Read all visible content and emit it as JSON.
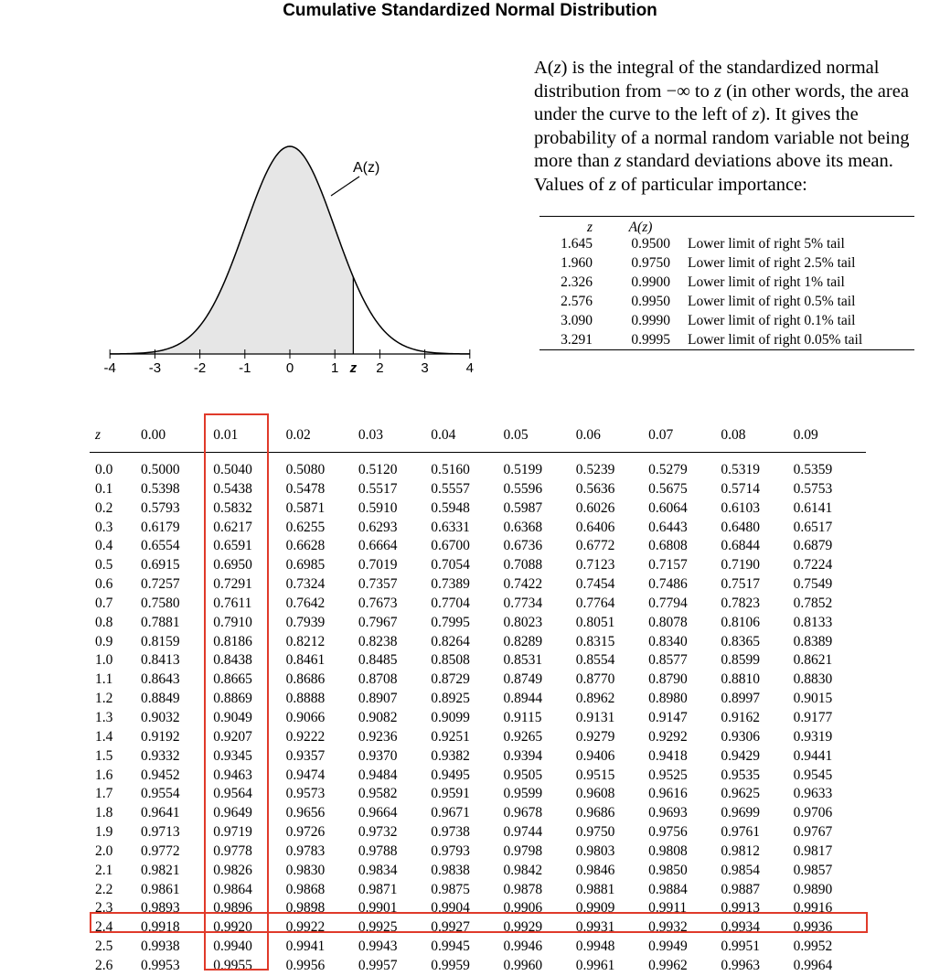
{
  "title": "Cumulative Standardized Normal Distribution",
  "figure": {
    "curve_label": "A(z)",
    "axis_ticks": [
      "-4",
      "-3",
      "-2",
      "-1",
      "0",
      "1",
      "z",
      "2",
      "3",
      "4"
    ],
    "fill_color": "#e6e6e6"
  },
  "description": {
    "p1": "A(",
    "p2": "z",
    "p3": ") is the integral of the standardized normal distribution from −∞ to ",
    "p4": "z",
    "p5": " (in other words, the area under the curve to the left of ",
    "p6": "z",
    "p7": "). It gives the probability of a normal random variable not being more than ",
    "p8": "z",
    "p9": " standard deviations above its mean. Values of ",
    "p10": "z",
    "p11": " of particular importance:"
  },
  "key_table": {
    "headers": [
      "z",
      "A(z)"
    ],
    "rows": [
      {
        "z": "1.645",
        "a": "0.9500",
        "desc": "Lower limit of right 5% tail"
      },
      {
        "z": "1.960",
        "a": "0.9750",
        "desc": "Lower limit of right 2.5% tail"
      },
      {
        "z": "2.326",
        "a": "0.9900",
        "desc": "Lower limit of right 1% tail"
      },
      {
        "z": "2.576",
        "a": "0.9950",
        "desc": "Lower limit of right 0.5% tail"
      },
      {
        "z": "3.090",
        "a": "0.9990",
        "desc": "Lower limit of right 0.1% tail"
      },
      {
        "z": "3.291",
        "a": "0.9995",
        "desc": "Lower limit of right 0.05% tail"
      }
    ]
  },
  "cdf_table": {
    "corner": "z",
    "columns": [
      "0.00",
      "0.01",
      "0.02",
      "0.03",
      "0.04",
      "0.05",
      "0.06",
      "0.07",
      "0.08",
      "0.09"
    ],
    "rows": [
      {
        "z": "0.0",
        "v": [
          "0.5000",
          "0.5040",
          "0.5080",
          "0.5120",
          "0.5160",
          "0.5199",
          "0.5239",
          "0.5279",
          "0.5319",
          "0.5359"
        ]
      },
      {
        "z": "0.1",
        "v": [
          "0.5398",
          "0.5438",
          "0.5478",
          "0.5517",
          "0.5557",
          "0.5596",
          "0.5636",
          "0.5675",
          "0.5714",
          "0.5753"
        ]
      },
      {
        "z": "0.2",
        "v": [
          "0.5793",
          "0.5832",
          "0.5871",
          "0.5910",
          "0.5948",
          "0.5987",
          "0.6026",
          "0.6064",
          "0.6103",
          "0.6141"
        ]
      },
      {
        "z": "0.3",
        "v": [
          "0.6179",
          "0.6217",
          "0.6255",
          "0.6293",
          "0.6331",
          "0.6368",
          "0.6406",
          "0.6443",
          "0.6480",
          "0.6517"
        ]
      },
      {
        "z": "0.4",
        "v": [
          "0.6554",
          "0.6591",
          "0.6628",
          "0.6664",
          "0.6700",
          "0.6736",
          "0.6772",
          "0.6808",
          "0.6844",
          "0.6879"
        ]
      },
      {
        "z": "0.5",
        "v": [
          "0.6915",
          "0.6950",
          "0.6985",
          "0.7019",
          "0.7054",
          "0.7088",
          "0.7123",
          "0.7157",
          "0.7190",
          "0.7224"
        ]
      },
      {
        "z": "0.6",
        "v": [
          "0.7257",
          "0.7291",
          "0.7324",
          "0.7357",
          "0.7389",
          "0.7422",
          "0.7454",
          "0.7486",
          "0.7517",
          "0.7549"
        ]
      },
      {
        "z": "0.7",
        "v": [
          "0.7580",
          "0.7611",
          "0.7642",
          "0.7673",
          "0.7704",
          "0.7734",
          "0.7764",
          "0.7794",
          "0.7823",
          "0.7852"
        ]
      },
      {
        "z": "0.8",
        "v": [
          "0.7881",
          "0.7910",
          "0.7939",
          "0.7967",
          "0.7995",
          "0.8023",
          "0.8051",
          "0.8078",
          "0.8106",
          "0.8133"
        ]
      },
      {
        "z": "0.9",
        "v": [
          "0.8159",
          "0.8186",
          "0.8212",
          "0.8238",
          "0.8264",
          "0.8289",
          "0.8315",
          "0.8340",
          "0.8365",
          "0.8389"
        ]
      },
      {
        "z": "1.0",
        "v": [
          "0.8413",
          "0.8438",
          "0.8461",
          "0.8485",
          "0.8508",
          "0.8531",
          "0.8554",
          "0.8577",
          "0.8599",
          "0.8621"
        ]
      },
      {
        "z": "1.1",
        "v": [
          "0.8643",
          "0.8665",
          "0.8686",
          "0.8708",
          "0.8729",
          "0.8749",
          "0.8770",
          "0.8790",
          "0.8810",
          "0.8830"
        ]
      },
      {
        "z": "1.2",
        "v": [
          "0.8849",
          "0.8869",
          "0.8888",
          "0.8907",
          "0.8925",
          "0.8944",
          "0.8962",
          "0.8980",
          "0.8997",
          "0.9015"
        ]
      },
      {
        "z": "1.3",
        "v": [
          "0.9032",
          "0.9049",
          "0.9066",
          "0.9082",
          "0.9099",
          "0.9115",
          "0.9131",
          "0.9147",
          "0.9162",
          "0.9177"
        ]
      },
      {
        "z": "1.4",
        "v": [
          "0.9192",
          "0.9207",
          "0.9222",
          "0.9236",
          "0.9251",
          "0.9265",
          "0.9279",
          "0.9292",
          "0.9306",
          "0.9319"
        ]
      },
      {
        "z": "1.5",
        "v": [
          "0.9332",
          "0.9345",
          "0.9357",
          "0.9370",
          "0.9382",
          "0.9394",
          "0.9406",
          "0.9418",
          "0.9429",
          "0.9441"
        ]
      },
      {
        "z": "1.6",
        "v": [
          "0.9452",
          "0.9463",
          "0.9474",
          "0.9484",
          "0.9495",
          "0.9505",
          "0.9515",
          "0.9525",
          "0.9535",
          "0.9545"
        ]
      },
      {
        "z": "1.7",
        "v": [
          "0.9554",
          "0.9564",
          "0.9573",
          "0.9582",
          "0.9591",
          "0.9599",
          "0.9608",
          "0.9616",
          "0.9625",
          "0.9633"
        ]
      },
      {
        "z": "1.8",
        "v": [
          "0.9641",
          "0.9649",
          "0.9656",
          "0.9664",
          "0.9671",
          "0.9678",
          "0.9686",
          "0.9693",
          "0.9699",
          "0.9706"
        ]
      },
      {
        "z": "1.9",
        "v": [
          "0.9713",
          "0.9719",
          "0.9726",
          "0.9732",
          "0.9738",
          "0.9744",
          "0.9750",
          "0.9756",
          "0.9761",
          "0.9767"
        ]
      },
      {
        "z": "2.0",
        "v": [
          "0.9772",
          "0.9778",
          "0.9783",
          "0.9788",
          "0.9793",
          "0.9798",
          "0.9803",
          "0.9808",
          "0.9812",
          "0.9817"
        ]
      },
      {
        "z": "2.1",
        "v": [
          "0.9821",
          "0.9826",
          "0.9830",
          "0.9834",
          "0.9838",
          "0.9842",
          "0.9846",
          "0.9850",
          "0.9854",
          "0.9857"
        ]
      },
      {
        "z": "2.2",
        "v": [
          "0.9861",
          "0.9864",
          "0.9868",
          "0.9871",
          "0.9875",
          "0.9878",
          "0.9881",
          "0.9884",
          "0.9887",
          "0.9890"
        ]
      },
      {
        "z": "2.3",
        "v": [
          "0.9893",
          "0.9896",
          "0.9898",
          "0.9901",
          "0.9904",
          "0.9906",
          "0.9909",
          "0.9911",
          "0.9913",
          "0.9916"
        ]
      },
      {
        "z": "2.4",
        "v": [
          "0.9918",
          "0.9920",
          "0.9922",
          "0.9925",
          "0.9927",
          "0.9929",
          "0.9931",
          "0.9932",
          "0.9934",
          "0.9936"
        ]
      },
      {
        "z": "2.5",
        "v": [
          "0.9938",
          "0.9940",
          "0.9941",
          "0.9943",
          "0.9945",
          "0.9946",
          "0.9948",
          "0.9949",
          "0.9951",
          "0.9952"
        ]
      },
      {
        "z": "2.6",
        "v": [
          "0.9953",
          "0.9955",
          "0.9956",
          "0.9957",
          "0.9959",
          "0.9960",
          "0.9961",
          "0.9962",
          "0.9963",
          "0.9964"
        ]
      }
    ],
    "highlight": {
      "column": "0.01",
      "row": "2.4",
      "color": "#e03a2a"
    }
  }
}
